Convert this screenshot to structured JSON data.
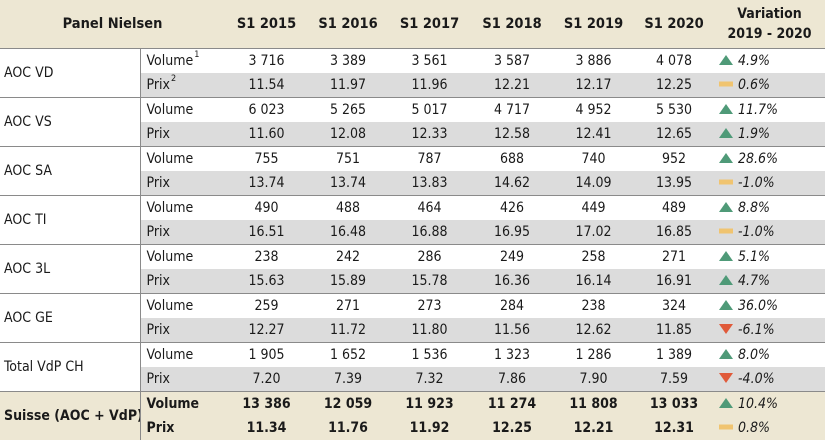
{
  "header": {
    "title": "Panel Nielsen",
    "years": [
      "S1 2015",
      "S1 2016",
      "S1 2017",
      "S1 2018",
      "S1 2019",
      "S1 2020"
    ],
    "variation_line1": "Variation",
    "variation_line2": "2019 - 2020"
  },
  "colors": {
    "up": "#4f9a78",
    "flat": "#f0c470",
    "down": "#e05a3a",
    "header_bg": "#ede7d3",
    "grey_row": "#dcdcdc"
  },
  "groups": [
    {
      "name": "AOC VD",
      "rows": [
        {
          "label": "Volume",
          "sup": "1",
          "values": [
            "3 716",
            "3 389",
            "3 561",
            "3 587",
            "3 886",
            "4 078"
          ],
          "trend": "up",
          "variation": "4.9%"
        },
        {
          "label": "Prix",
          "sup": "2",
          "values": [
            "11.54",
            "11.97",
            "11.96",
            "12.21",
            "12.17",
            "12.25"
          ],
          "trend": "flat",
          "variation": "0.6%"
        }
      ]
    },
    {
      "name": "AOC VS",
      "rows": [
        {
          "label": "Volume",
          "sup": "",
          "values": [
            "6 023",
            "5 265",
            "5 017",
            "4 717",
            "4 952",
            "5 530"
          ],
          "trend": "up",
          "variation": "11.7%"
        },
        {
          "label": "Prix",
          "sup": "",
          "values": [
            "11.60",
            "12.08",
            "12.33",
            "12.58",
            "12.41",
            "12.65"
          ],
          "trend": "up",
          "variation": "1.9%"
        }
      ]
    },
    {
      "name": "AOC SA",
      "rows": [
        {
          "label": "Volume",
          "sup": "",
          "values": [
            "755",
            "751",
            "787",
            "688",
            "740",
            "952"
          ],
          "trend": "up",
          "variation": "28.6%"
        },
        {
          "label": "Prix",
          "sup": "",
          "values": [
            "13.74",
            "13.74",
            "13.83",
            "14.62",
            "14.09",
            "13.95"
          ],
          "trend": "flat",
          "variation": "-1.0%"
        }
      ]
    },
    {
      "name": "AOC TI",
      "rows": [
        {
          "label": "Volume",
          "sup": "",
          "values": [
            "490",
            "488",
            "464",
            "426",
            "449",
            "489"
          ],
          "trend": "up",
          "variation": "8.8%"
        },
        {
          "label": "Prix",
          "sup": "",
          "values": [
            "16.51",
            "16.48",
            "16.88",
            "16.95",
            "17.02",
            "16.85"
          ],
          "trend": "flat",
          "variation": "-1.0%"
        }
      ]
    },
    {
      "name": "AOC 3L",
      "rows": [
        {
          "label": "Volume",
          "sup": "",
          "values": [
            "238",
            "242",
            "286",
            "249",
            "258",
            "271"
          ],
          "trend": "up",
          "variation": "5.1%"
        },
        {
          "label": "Prix",
          "sup": "",
          "values": [
            "15.63",
            "15.89",
            "15.78",
            "16.36",
            "16.14",
            "16.91"
          ],
          "trend": "up",
          "variation": "4.7%"
        }
      ]
    },
    {
      "name": "AOC GE",
      "rows": [
        {
          "label": "Volume",
          "sup": "",
          "values": [
            "259",
            "271",
            "273",
            "284",
            "238",
            "324"
          ],
          "trend": "up",
          "variation": "36.0%"
        },
        {
          "label": "Prix",
          "sup": "",
          "values": [
            "12.27",
            "11.72",
            "11.80",
            "11.56",
            "12.62",
            "11.85"
          ],
          "trend": "down",
          "variation": "-6.1%"
        }
      ]
    },
    {
      "name": "Total VdP CH",
      "rows": [
        {
          "label": "Volume",
          "sup": "",
          "values": [
            "1 905",
            "1 652",
            "1 536",
            "1 323",
            "1 286",
            "1 389"
          ],
          "trend": "up",
          "variation": "8.0%"
        },
        {
          "label": "Prix",
          "sup": "",
          "values": [
            "7.20",
            "7.39",
            "7.32",
            "7.86",
            "7.90",
            "7.59"
          ],
          "trend": "down",
          "variation": "-4.0%"
        }
      ]
    }
  ],
  "total": {
    "name": "Suisse (AOC + VdP)",
    "rows": [
      {
        "label": "Volume",
        "values": [
          "13 386",
          "12 059",
          "11 923",
          "11 274",
          "11 808",
          "13 033"
        ],
        "trend": "up",
        "variation": "10.4%"
      },
      {
        "label": "Prix",
        "values": [
          "11.34",
          "11.76",
          "11.92",
          "12.25",
          "12.21",
          "12.31"
        ],
        "trend": "flat",
        "variation": "0.8%"
      }
    ]
  }
}
